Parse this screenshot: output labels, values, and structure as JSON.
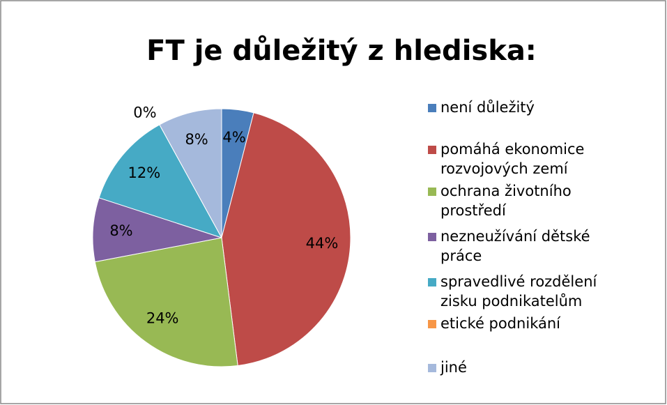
{
  "chart_data": {
    "type": "pie",
    "title": "FT je důležitý z hlediska:",
    "categories": [
      "není důležitý",
      "pomáhá ekonomice rozvojových zemí",
      "ochrana životního prostředí",
      "nezneužívání dětské práce",
      "spravedlivé rozdělení zisku podnikatelům",
      "etické podnikání",
      "jiné"
    ],
    "values": [
      4,
      44,
      24,
      8,
      12,
      0,
      8
    ],
    "value_labels": [
      "4%",
      "44%",
      "24%",
      "8%",
      "12%",
      "0%",
      "8%"
    ],
    "colors": [
      "#4a7ebb",
      "#be4b48",
      "#98b954",
      "#7d60a0",
      "#46aac5",
      "#f79646",
      "#a5b9dc"
    ],
    "legend": "right"
  }
}
